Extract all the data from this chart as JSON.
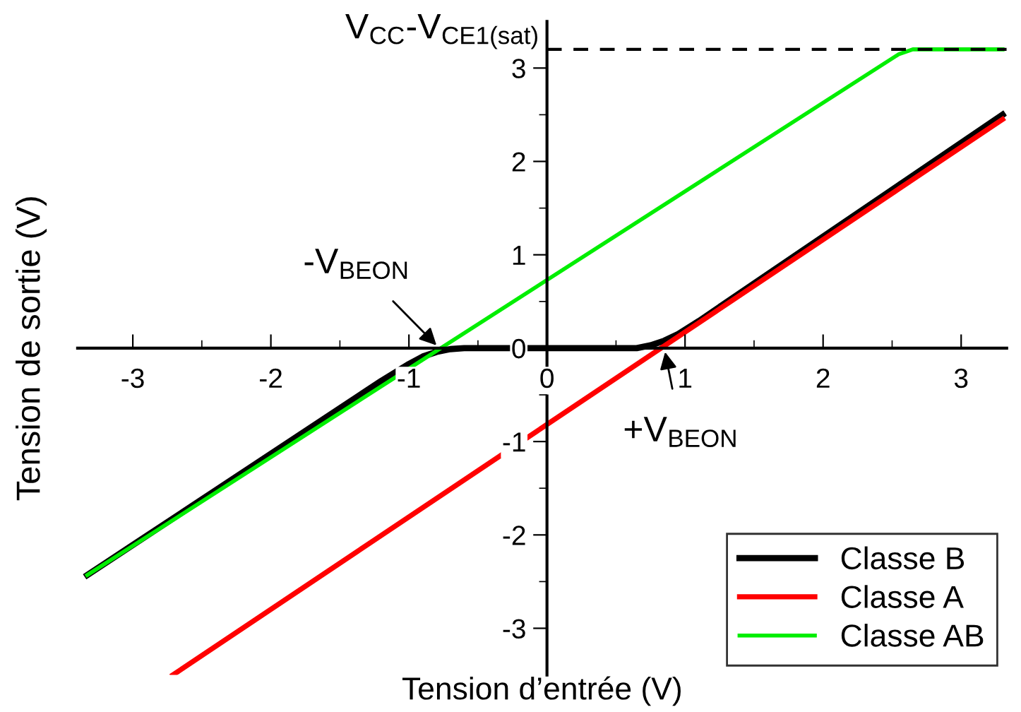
{
  "chart_data": {
    "type": "line",
    "xlabel": "Tension d’entrée (V)",
    "ylabel": "Tension de sortie (V)",
    "xlim": [
      -3.4,
      3.33
    ],
    "ylim": [
      -3.5,
      3.5
    ],
    "xticks": [
      -3,
      -2,
      -1,
      0,
      1,
      2,
      3
    ],
    "yticks": [
      -3,
      -2,
      -1,
      0,
      1,
      2,
      3
    ],
    "grid": false,
    "legend": "bottom right",
    "marker": "none",
    "line_style": "solid",
    "series": [
      {
        "name": "Classe B",
        "color": "#000000",
        "x": [
          -3.33,
          -1.2,
          -1.0,
          -0.9,
          -0.8,
          -0.7,
          -0.6,
          0.65,
          0.75,
          0.85,
          0.95,
          1.1,
          3.3
        ],
        "values": [
          -2.43,
          -0.35,
          -0.17,
          -0.09,
          -0.04,
          -0.01,
          0,
          0,
          0.03,
          0.08,
          0.15,
          0.29,
          2.5
        ]
      },
      {
        "name": "Classe A",
        "color": "#ff0000",
        "x": [
          -2.71,
          3.3
        ],
        "values": [
          -3.5,
          2.45
        ]
      },
      {
        "name": "Classe AB",
        "color": "#00ee00",
        "x": [
          -3.33,
          2.55,
          2.65,
          3.3
        ],
        "values": [
          -2.43,
          3.15,
          3.2,
          3.2
        ]
      }
    ],
    "ref_lines": [
      {
        "axis": "y",
        "value": 3.2,
        "label": "V$_{CC}$-V$_{CE1(sat)}$",
        "color": "#000000",
        "line_style": "dashed"
      }
    ],
    "annotations": [
      {
        "text": "-V$_{BEON}$",
        "x": -0.78,
        "y": 0
      },
      {
        "text": "+V$_{BEON}$",
        "x": 0.85,
        "y": 0
      }
    ]
  }
}
